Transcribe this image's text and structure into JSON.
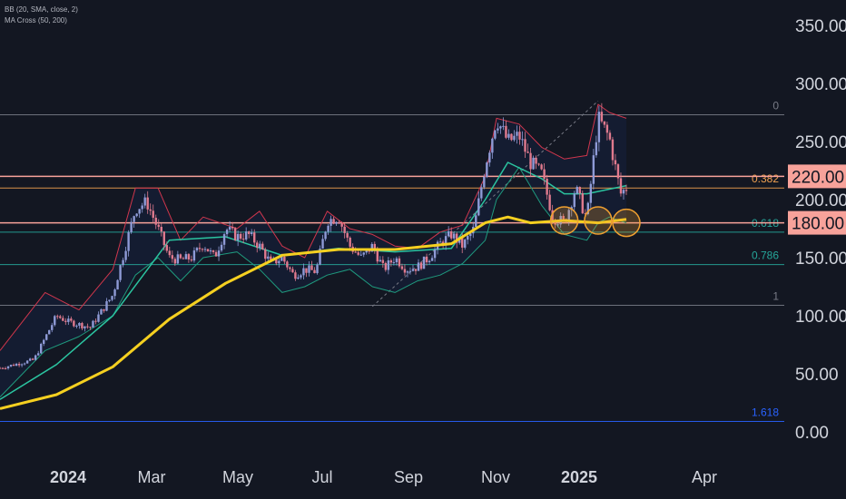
{
  "legend": {
    "bb": "BB (20, SMA, close, 2)",
    "ma_cross": "MA Cross (50, 200)"
  },
  "colors": {
    "background": "#131722",
    "candle_up": "#8e9ad6",
    "candle_down": "#e07a8e",
    "bb_upper": "#d0364c",
    "bb_lower": "#1f9a7e",
    "bb_basis": "#2962ff",
    "ma50": "#2bc4a0",
    "ma200": "#f5d020",
    "fib_0": "#787b86",
    "fib_0382": "#f0a050",
    "fib_0618": "#26a69a",
    "fib_0786": "#26a69a",
    "fib_1": "#787b86",
    "fib_1618": "#2962ff",
    "hline": "#f7a29a",
    "circle": "#f0a030",
    "axis_text": "#d1d4dc"
  },
  "chart_data": {
    "type": "line",
    "y_axis": {
      "ticks": [
        "350.00",
        "300.00",
        "250.00",
        "200.00",
        "150.00",
        "100.00",
        "50.00",
        "0.00"
      ],
      "tick_values": [
        350,
        300,
        250,
        200,
        150,
        100,
        50,
        0
      ],
      "ylim": [
        -15,
        380
      ]
    },
    "x_axis": {
      "ticks": [
        "2024",
        "Mar",
        "May",
        "Jul",
        "Sep",
        "Nov",
        "2025",
        "Apr"
      ],
      "bold": [
        "2024",
        "2025"
      ]
    },
    "price_labels": [
      {
        "text": "220.00",
        "value": 220
      },
      {
        "text": "180.00",
        "value": 180
      }
    ],
    "horizontal_lines": [
      220,
      180
    ],
    "fibonacci": [
      {
        "label": "0",
        "value": 273
      },
      {
        "label": "0.382",
        "value": 210
      },
      {
        "label": "0.618",
        "value": 172
      },
      {
        "label": "0.786",
        "value": 144
      },
      {
        "label": "1",
        "value": 109
      },
      {
        "label": "1.618",
        "value": 9
      }
    ],
    "price_path": [
      [
        0,
        55
      ],
      [
        6,
        62
      ],
      [
        10,
        100
      ],
      [
        12,
        95
      ],
      [
        16,
        90
      ],
      [
        20,
        118
      ],
      [
        24,
        192
      ],
      [
        26,
        198
      ],
      [
        28,
        175
      ],
      [
        30,
        150
      ],
      [
        32,
        148
      ],
      [
        34,
        150
      ],
      [
        36,
        162
      ],
      [
        38,
        150
      ],
      [
        40,
        175
      ],
      [
        42,
        168
      ],
      [
        44,
        170
      ],
      [
        46,
        160
      ],
      [
        48,
        145
      ],
      [
        50,
        150
      ],
      [
        52,
        135
      ],
      [
        54,
        140
      ],
      [
        56,
        138
      ],
      [
        58,
        182
      ],
      [
        60,
        185
      ],
      [
        62,
        160
      ],
      [
        64,
        150
      ],
      [
        66,
        160
      ],
      [
        68,
        140
      ],
      [
        70,
        150
      ],
      [
        72,
        140
      ],
      [
        74,
        142
      ],
      [
        76,
        150
      ],
      [
        78,
        162
      ],
      [
        80,
        170
      ],
      [
        82,
        160
      ],
      [
        84,
        175
      ],
      [
        86,
        230
      ],
      [
        88,
        270
      ],
      [
        90,
        250
      ],
      [
        92,
        255
      ],
      [
        94,
        232
      ],
      [
        96,
        222
      ],
      [
        98,
        185
      ],
      [
        100,
        180
      ],
      [
        102,
        210
      ],
      [
        104,
        183
      ],
      [
        106,
        270
      ],
      [
        108,
        253
      ],
      [
        110,
        205
      ],
      [
        111,
        210
      ]
    ],
    "ma200_path": [
      [
        0,
        20
      ],
      [
        10,
        32
      ],
      [
        20,
        56
      ],
      [
        30,
        97
      ],
      [
        40,
        128
      ],
      [
        50,
        152
      ],
      [
        60,
        157
      ],
      [
        70,
        157
      ],
      [
        80,
        162
      ],
      [
        86,
        180
      ],
      [
        90,
        185
      ],
      [
        94,
        180
      ],
      [
        100,
        182
      ],
      [
        106,
        180
      ],
      [
        111,
        183
      ]
    ],
    "ma50_path": [
      [
        0,
        28
      ],
      [
        10,
        58
      ],
      [
        20,
        100
      ],
      [
        30,
        165
      ],
      [
        40,
        168
      ],
      [
        50,
        152
      ],
      [
        60,
        158
      ],
      [
        70,
        155
      ],
      [
        80,
        158
      ],
      [
        86,
        200
      ],
      [
        90,
        232
      ],
      [
        96,
        218
      ],
      [
        100,
        205
      ],
      [
        104,
        205
      ],
      [
        111,
        212
      ]
    ],
    "bb_upper_path": [
      [
        0,
        70
      ],
      [
        8,
        120
      ],
      [
        14,
        105
      ],
      [
        20,
        140
      ],
      [
        24,
        210
      ],
      [
        28,
        210
      ],
      [
        32,
        165
      ],
      [
        36,
        185
      ],
      [
        42,
        175
      ],
      [
        46,
        190
      ],
      [
        50,
        160
      ],
      [
        54,
        150
      ],
      [
        58,
        190
      ],
      [
        62,
        175
      ],
      [
        66,
        170
      ],
      [
        70,
        160
      ],
      [
        74,
        158
      ],
      [
        78,
        172
      ],
      [
        82,
        178
      ],
      [
        86,
        220
      ],
      [
        88,
        270
      ],
      [
        92,
        265
      ],
      [
        96,
        245
      ],
      [
        100,
        235
      ],
      [
        104,
        238
      ],
      [
        106,
        282
      ],
      [
        108,
        275
      ],
      [
        111,
        270
      ]
    ],
    "bb_lower_path": [
      [
        0,
        30
      ],
      [
        8,
        70
      ],
      [
        14,
        82
      ],
      [
        20,
        100
      ],
      [
        24,
        135
      ],
      [
        28,
        150
      ],
      [
        32,
        130
      ],
      [
        36,
        150
      ],
      [
        42,
        155
      ],
      [
        46,
        140
      ],
      [
        50,
        120
      ],
      [
        54,
        125
      ],
      [
        58,
        135
      ],
      [
        62,
        140
      ],
      [
        66,
        125
      ],
      [
        70,
        120
      ],
      [
        74,
        130
      ],
      [
        78,
        135
      ],
      [
        82,
        145
      ],
      [
        86,
        165
      ],
      [
        88,
        200
      ],
      [
        92,
        228
      ],
      [
        96,
        195
      ],
      [
        100,
        170
      ],
      [
        104,
        165
      ],
      [
        106,
        180
      ],
      [
        108,
        185
      ],
      [
        111,
        180
      ]
    ],
    "trend_line": [
      [
        66,
        108
      ],
      [
        106,
        285
      ]
    ],
    "circles": [
      [
        100,
        182
      ],
      [
        106,
        182
      ],
      [
        111,
        180
      ]
    ]
  }
}
